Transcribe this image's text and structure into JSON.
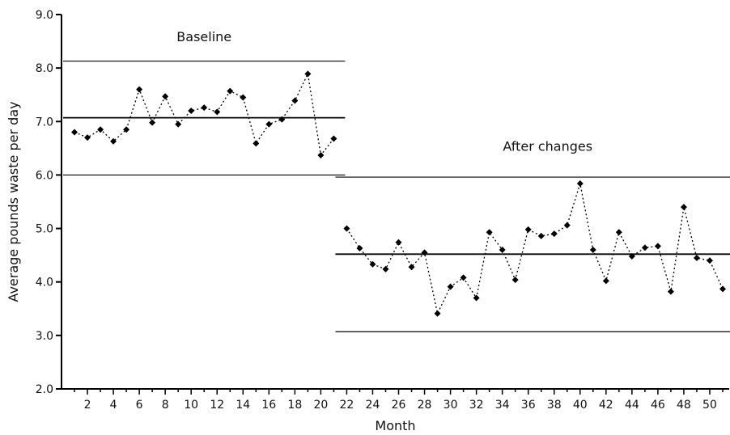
{
  "chart_data": {
    "type": "line",
    "xlabel": "Month",
    "ylabel": "Average pounds waste per day",
    "xlim": [
      0,
      51.5
    ],
    "ylim": [
      2.0,
      9.0
    ],
    "x_ticks": [
      2,
      4,
      6,
      8,
      10,
      12,
      14,
      16,
      18,
      20,
      22,
      24,
      26,
      28,
      30,
      32,
      34,
      36,
      38,
      40,
      42,
      44,
      46,
      48,
      50
    ],
    "y_ticks": [
      "2.0",
      "3.0",
      "4.0",
      "5.0",
      "6.0",
      "7.0",
      "8.0",
      "9.0"
    ],
    "grid": false,
    "series": [
      {
        "x": [
          1,
          2,
          3,
          4,
          5,
          6,
          7,
          8,
          9,
          10,
          11,
          12,
          13,
          14,
          15,
          16,
          17,
          18,
          19,
          20,
          21
        ],
        "values": [
          6.8,
          6.7,
          6.85,
          6.63,
          6.85,
          7.6,
          6.98,
          7.47,
          6.95,
          7.2,
          7.26,
          7.18,
          7.57,
          7.45,
          6.59,
          6.95,
          7.04,
          7.39,
          7.89,
          6.37,
          6.68
        ],
        "style": "dotted",
        "marker": "diamond",
        "color": "#000000"
      },
      {
        "x": [
          22,
          23,
          24,
          25,
          26,
          27,
          28,
          29,
          30,
          31,
          32,
          33,
          34,
          35,
          36,
          37,
          38,
          39,
          40,
          41,
          42,
          43,
          44,
          45,
          46,
          47,
          48,
          49,
          50,
          51
        ],
        "values": [
          5.0,
          4.63,
          4.33,
          4.24,
          4.74,
          4.28,
          4.55,
          3.41,
          3.91,
          4.08,
          3.7,
          4.93,
          4.6,
          4.04,
          4.98,
          4.86,
          4.9,
          5.06,
          5.84,
          4.6,
          4.02,
          4.93,
          4.48,
          4.64,
          4.67,
          3.82,
          5.4,
          4.45,
          4.4,
          3.87
        ],
        "style": "dotted",
        "marker": "diamond",
        "color": "#000000"
      }
    ],
    "control_lines": [
      {
        "x_start": 1,
        "x_end": 21,
        "ucl": 8.13,
        "center": 7.07,
        "lcl": 6.0
      },
      {
        "x_start": 22,
        "x_end": 51,
        "ucl": 5.96,
        "center": 4.52,
        "lcl": 3.07
      }
    ],
    "annotations": [
      {
        "text": "Baseline",
        "x": 11,
        "y": 8.5
      },
      {
        "text": "After changes",
        "x": 37.5,
        "y": 6.45
      }
    ]
  }
}
